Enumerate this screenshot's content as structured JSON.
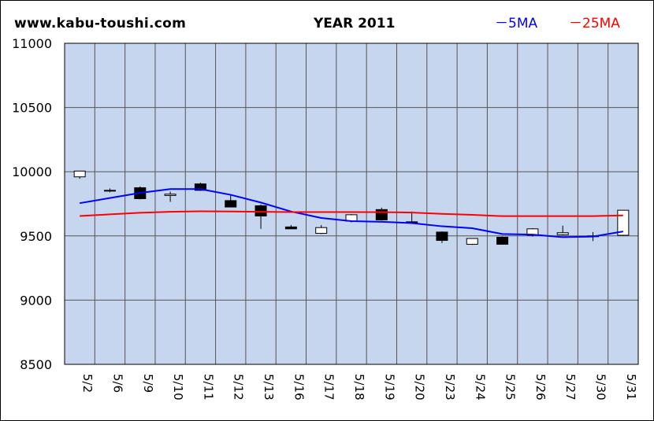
{
  "header": {
    "site": "www.kabu-toushi.com",
    "title": "YEAR 2011",
    "legend_5ma": "－5MA",
    "legend_25ma": "－25MA"
  },
  "colors": {
    "plot_bg": "#c5d6ee",
    "grid": "#555555",
    "ma5": "#0000ff",
    "ma25": "#ff0000",
    "candle_up": "#ffffff",
    "candle_down": "#000000"
  },
  "chart_data": {
    "type": "candlestick",
    "title": "YEAR 2011",
    "ylim": [
      8500,
      11000
    ],
    "yticks": [
      8500,
      9000,
      9500,
      10000,
      10500,
      11000
    ],
    "categories": [
      "5/2",
      "5/6",
      "5/9",
      "5/10",
      "5/11",
      "5/12",
      "5/13",
      "5/16",
      "5/17",
      "5/18",
      "5/19",
      "5/20",
      "5/23",
      "5/24",
      "5/25",
      "5/26",
      "5/27",
      "5/30",
      "5/31"
    ],
    "candles": [
      {
        "open": 9960,
        "close": 10005,
        "high": 10005,
        "low": 9945
      },
      {
        "open": 9855,
        "close": 9850,
        "high": 9870,
        "low": 9840
      },
      {
        "open": 9875,
        "close": 9790,
        "high": 9885,
        "low": 9785
      },
      {
        "open": 9815,
        "close": 9825,
        "high": 9845,
        "low": 9765
      },
      {
        "open": 9905,
        "close": 9855,
        "high": 9915,
        "low": 9850
      },
      {
        "open": 9775,
        "close": 9725,
        "high": 9815,
        "low": 9725
      },
      {
        "open": 9735,
        "close": 9655,
        "high": 9745,
        "low": 9555
      },
      {
        "open": 9570,
        "close": 9555,
        "high": 9585,
        "low": 9555
      },
      {
        "open": 9520,
        "close": 9565,
        "high": 9585,
        "low": 9515
      },
      {
        "open": 9615,
        "close": 9665,
        "high": 9670,
        "low": 9605
      },
      {
        "open": 9705,
        "close": 9625,
        "high": 9720,
        "low": 9620
      },
      {
        "open": 9605,
        "close": 9610,
        "high": 9690,
        "low": 9600
      },
      {
        "open": 9530,
        "close": 9465,
        "high": 9535,
        "low": 9445
      },
      {
        "open": 9435,
        "close": 9480,
        "high": 9480,
        "low": 9430
      },
      {
        "open": 9490,
        "close": 9435,
        "high": 9495,
        "low": 9435
      },
      {
        "open": 9505,
        "close": 9555,
        "high": 9560,
        "low": 9495
      },
      {
        "open": 9510,
        "close": 9525,
        "high": 9580,
        "low": 9505
      },
      {
        "open": 9500,
        "close": 9500,
        "high": 9530,
        "low": 9460
      },
      {
        "open": 9505,
        "close": 9700,
        "high": 9700,
        "low": 9500
      }
    ],
    "series": [
      {
        "name": "5MA",
        "values": [
          9755,
          9795,
          9835,
          9865,
          9865,
          9820,
          9760,
          9690,
          9640,
          9615,
          9610,
          9600,
          9575,
          9560,
          9515,
          9510,
          9490,
          9495,
          9535
        ]
      },
      {
        "name": "25MA",
        "values": [
          9655,
          9668,
          9680,
          9688,
          9692,
          9690,
          9688,
          9686,
          9686,
          9686,
          9685,
          9682,
          9672,
          9664,
          9654,
          9654,
          9654,
          9654,
          9660
        ]
      }
    ]
  }
}
